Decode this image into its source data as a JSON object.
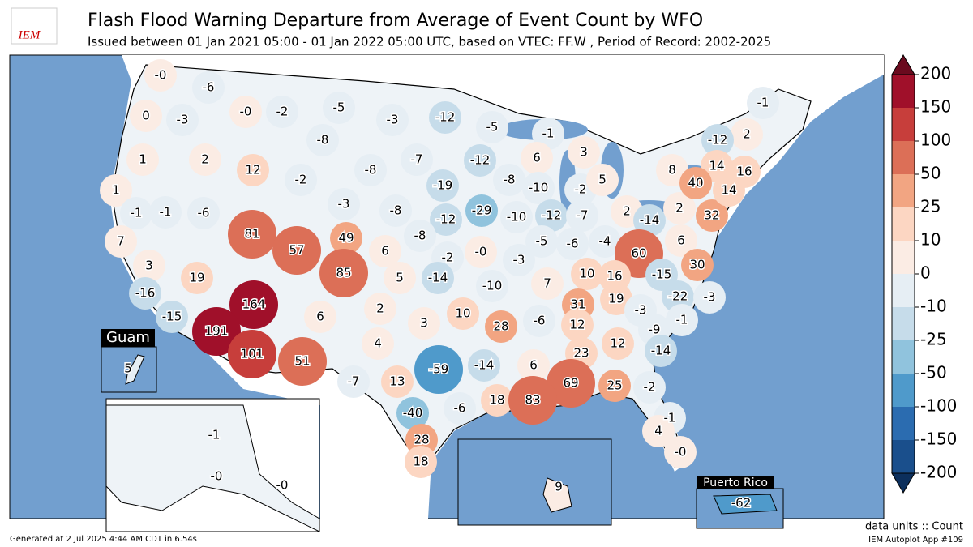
{
  "header": {
    "logo": "IEM",
    "title": "Flash Flood Warning Departure from Average of Event Count by WFO",
    "subtitle": "Issued between 01 Jan 2021 05:00 - 01 Jan 2022 05:00 UTC, based on VTEC: FF.W  , Period of Record: 2002-2025"
  },
  "chart_data": {
    "type": "choropleth",
    "value_labels": [
      "-0",
      "-6",
      "0",
      "-3",
      "-0",
      "-2",
      "-5",
      "-3",
      "-12",
      "-5",
      "-1",
      "-8",
      "1",
      "2",
      "12",
      "-2",
      "-8",
      "-7",
      "-12",
      "6",
      "3",
      "-8",
      "1",
      "-1",
      "-1",
      "-6",
      "-3",
      "-19",
      "-29",
      "-10",
      "-2",
      "5",
      "-10",
      "-12",
      "-7",
      "-8",
      "-12",
      "81",
      "57",
      "49",
      "-8",
      "7",
      "3",
      "85",
      "6",
      "5",
      "-2",
      "-0",
      "-3",
      "-5",
      "-6",
      "-4",
      "2",
      "-14",
      "2",
      "32",
      "60",
      "6",
      "30",
      "19",
      "-14",
      "-10",
      "7",
      "10",
      "16",
      "-15",
      "-16",
      "-15",
      "164",
      "6",
      "2",
      "3",
      "10",
      "31",
      "19",
      "-22",
      "-3",
      "191",
      "101",
      "4",
      "28",
      "-6",
      "12",
      "-3",
      "-9",
      "-1",
      "5",
      "51",
      "-7",
      "13",
      "-59",
      "-14",
      "6",
      "23",
      "12",
      "-14",
      "69",
      "25",
      "-2",
      "18",
      "83",
      "-40",
      "-6",
      "-1",
      "4",
      "-0",
      "28",
      "18",
      "-1",
      "-0",
      "-0",
      "9",
      "-62",
      "-1",
      "2",
      "-12",
      "8",
      "14",
      "16",
      "40",
      "14"
    ],
    "values": [
      0,
      -6,
      0,
      -3,
      0,
      -2,
      -5,
      -3,
      -12,
      -5,
      -1,
      -8,
      1,
      2,
      12,
      -2,
      -8,
      -7,
      -12,
      6,
      3,
      -8,
      1,
      -1,
      -1,
      -6,
      -3,
      -19,
      -29,
      -10,
      -2,
      5,
      -10,
      -12,
      -7,
      -8,
      -12,
      81,
      57,
      49,
      -8,
      7,
      3,
      85,
      6,
      5,
      -2,
      0,
      -3,
      -5,
      -6,
      -4,
      2,
      -14,
      2,
      32,
      60,
      6,
      30,
      19,
      -14,
      -10,
      7,
      10,
      16,
      -15,
      -16,
      -15,
      164,
      6,
      2,
      3,
      10,
      31,
      19,
      -22,
      -3,
      191,
      101,
      4,
      28,
      -6,
      12,
      -3,
      -9,
      -1,
      5,
      51,
      -7,
      13,
      -59,
      -14,
      6,
      23,
      12,
      -14,
      69,
      25,
      -2,
      18,
      83,
      -40,
      -6,
      -1,
      4,
      0,
      28,
      18,
      -1,
      0,
      0,
      9,
      -62,
      -1,
      2,
      -12,
      8,
      14,
      16,
      40,
      14
    ],
    "colorbar": {
      "ticks": [
        -200,
        -150,
        -100,
        -50,
        -25,
        -10,
        0,
        10,
        25,
        50,
        100,
        150,
        200
      ],
      "colors": [
        "#1a4f8c",
        "#2b6cb0",
        "#4f9acb",
        "#90c3dd",
        "#c6dcea",
        "#e6eef4",
        "#fbece4",
        "#fcd6c2",
        "#f2a582",
        "#dc6f57",
        "#c73e3b",
        "#a0102a"
      ],
      "extend_colors": [
        "#0c2f5c",
        "#6a0a1e"
      ]
    },
    "insets": [
      "Guam",
      "Puerto Rico"
    ]
  },
  "footer": {
    "generated": "Generated at 2 Jul 2025 4:44 AM CDT in 6.54s",
    "units": "data units :: Count",
    "app": "IEM Autoplot App #109"
  }
}
